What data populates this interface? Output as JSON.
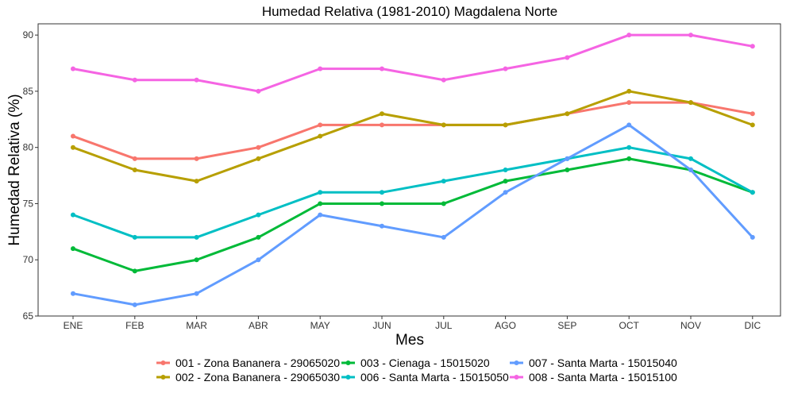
{
  "chart_data": {
    "type": "line",
    "title": "Humedad Relativa (1981-2010)  Magdalena Norte",
    "xlabel": "Mes",
    "ylabel": "Humedad Relativa   (%)",
    "categories": [
      "ENE",
      "FEB",
      "MAR",
      "ABR",
      "MAY",
      "JUN",
      "JUL",
      "AGO",
      "SEP",
      "OCT",
      "NOV",
      "DIC"
    ],
    "ylim": [
      65,
      91
    ],
    "yticks": [
      65,
      70,
      75,
      80,
      85,
      90
    ],
    "grid": false,
    "legend_position": "bottom",
    "series": [
      {
        "name": "001 - Zona Bananera - 29065020",
        "color": "#F8766D",
        "values": [
          81,
          79,
          79,
          80,
          82,
          82,
          82,
          82,
          83,
          84,
          84,
          83
        ]
      },
      {
        "name": "002 - Zona Bananera - 29065030",
        "color": "#B79F00",
        "values": [
          80,
          78,
          77,
          79,
          81,
          83,
          82,
          82,
          83,
          85,
          84,
          82
        ]
      },
      {
        "name": "003 - Cienaga - 15015020",
        "color": "#00BA38",
        "values": [
          71,
          69,
          70,
          72,
          75,
          75,
          75,
          77,
          78,
          79,
          78,
          76
        ]
      },
      {
        "name": "006 - Santa Marta - 15015050",
        "color": "#00BFC4",
        "values": [
          74,
          72,
          72,
          74,
          76,
          76,
          77,
          78,
          79,
          80,
          79,
          76
        ]
      },
      {
        "name": "007 - Santa Marta - 15015040",
        "color": "#619CFF",
        "values": [
          67,
          66,
          67,
          70,
          74,
          73,
          72,
          76,
          79,
          82,
          78,
          72
        ]
      },
      {
        "name": "008 - Santa Marta - 15015100",
        "color": "#F564E3",
        "values": [
          87,
          86,
          86,
          85,
          87,
          87,
          86,
          87,
          88,
          90,
          90,
          89
        ]
      }
    ]
  }
}
